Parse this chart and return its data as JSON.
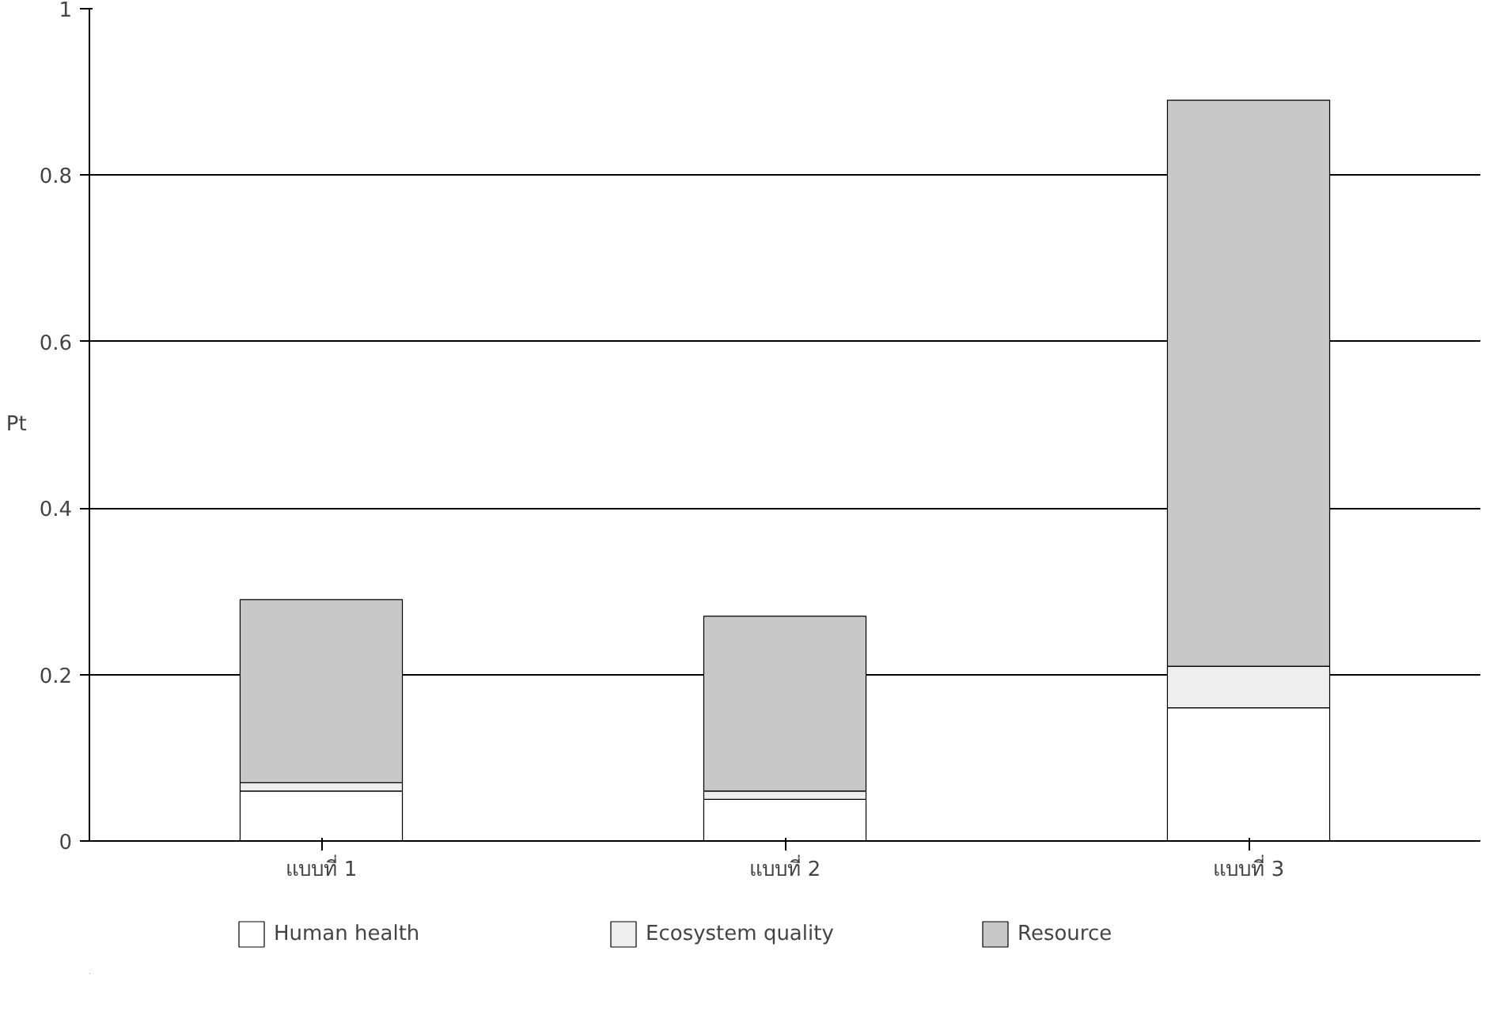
{
  "chart_data": {
    "type": "bar",
    "stacked": true,
    "ylabel": "Pt",
    "categories": [
      "แบบที่ 1",
      "แบบที่ 2",
      "แบบที่ 3"
    ],
    "series": [
      {
        "name": "Human health",
        "color": "#ffffff",
        "values": [
          0.06,
          0.05,
          0.16
        ]
      },
      {
        "name": "Ecosystem quality",
        "color": "#eeeeee",
        "values": [
          0.01,
          0.01,
          0.05
        ]
      },
      {
        "name": "Resource",
        "color": "#c8c8c8",
        "values": [
          0.22,
          0.21,
          0.68
        ]
      }
    ],
    "ylim": [
      0,
      1
    ],
    "yticks": [
      0,
      0.2,
      0.4,
      0.6,
      0.8,
      1
    ],
    "grid": "y",
    "legend": "bottom"
  }
}
